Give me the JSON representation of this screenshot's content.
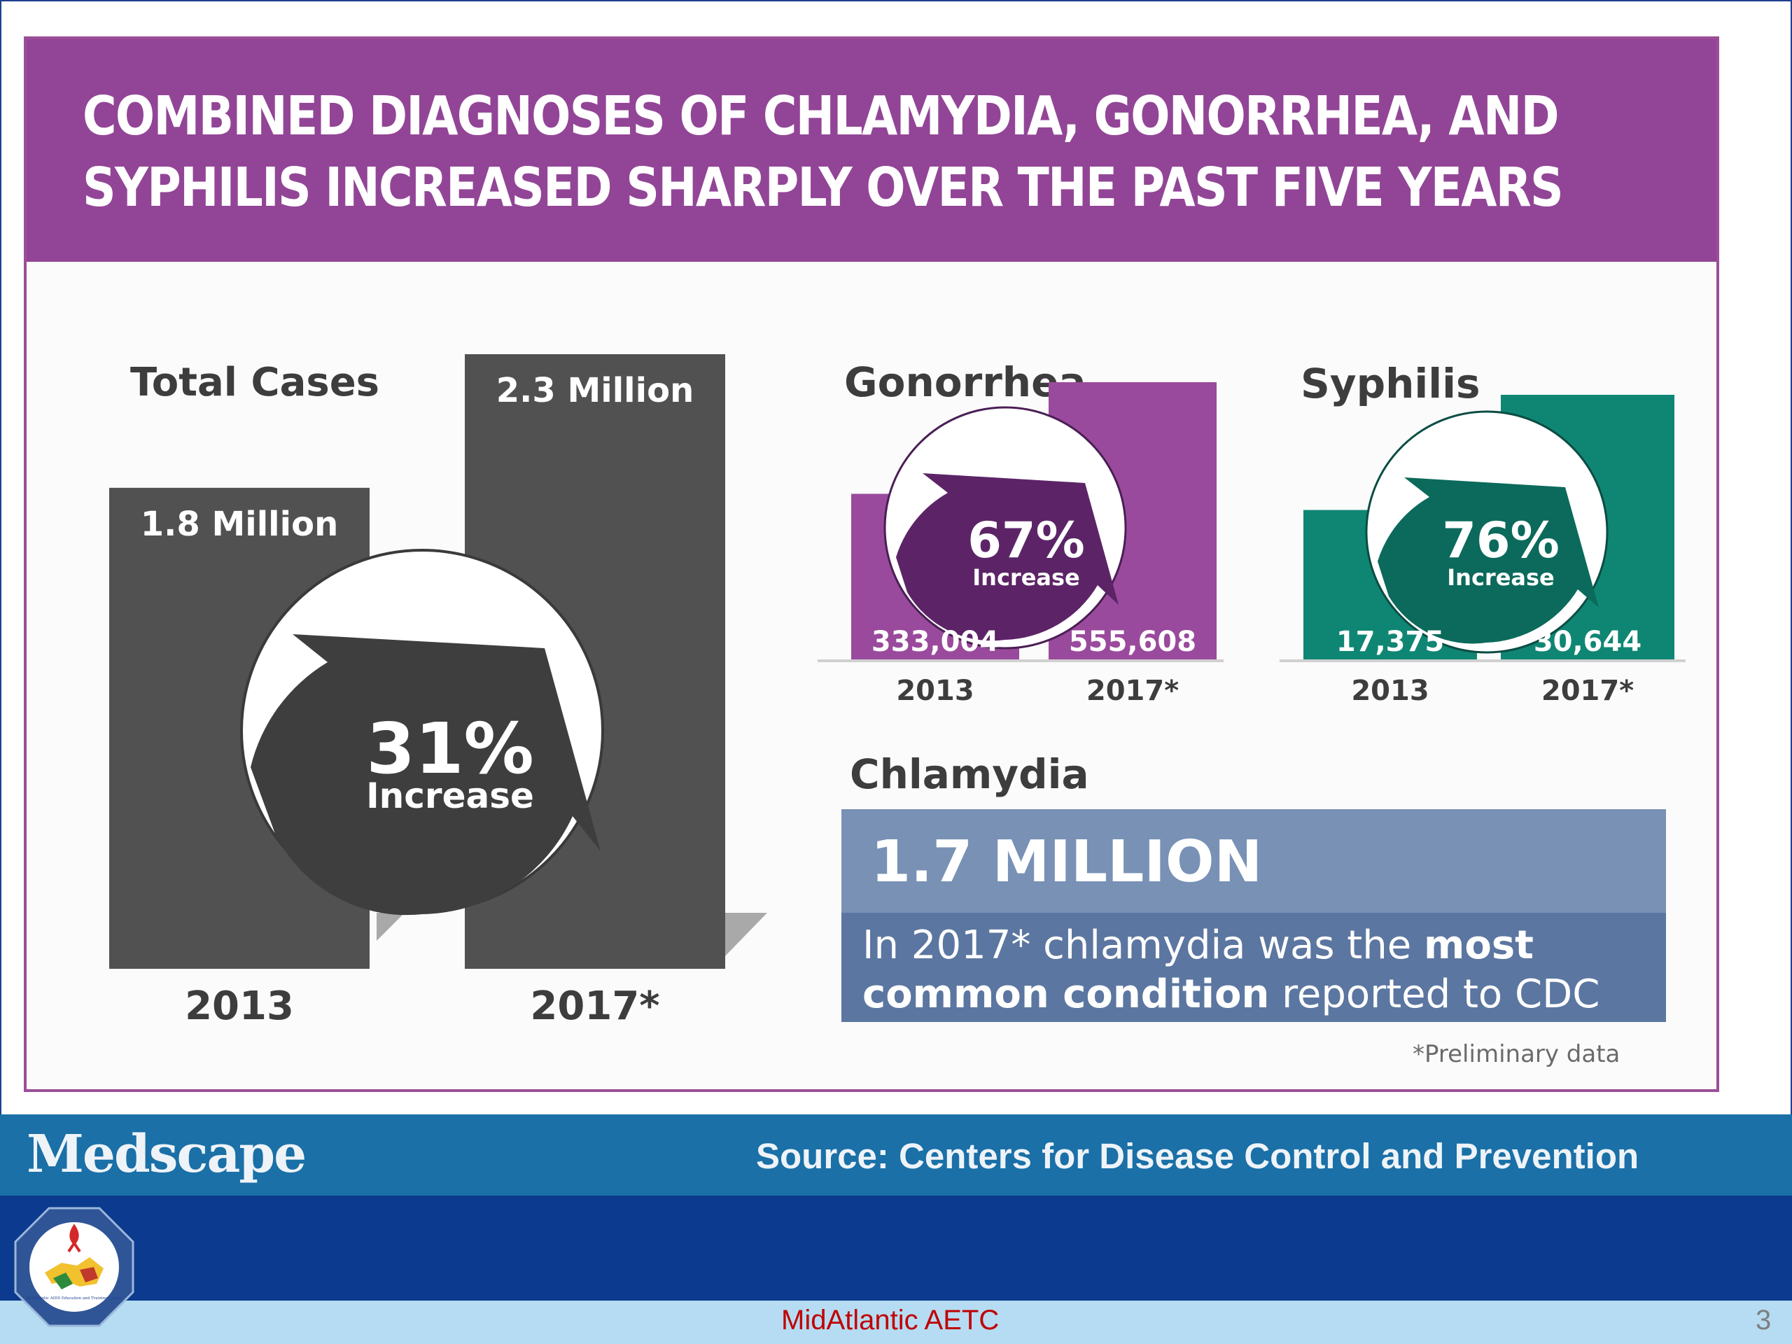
{
  "title": {
    "line1": "COMBINED DIAGNOSES OF CHLAMYDIA, GONORRHEA, AND",
    "line2": "SYPHILIS INCREASED SHARPLY OVER THE PAST FIVE YEARS"
  },
  "colors": {
    "header": "#924596",
    "total_bars": "#515151",
    "gonorrhea": "#9a4a9c",
    "syphilis": "#0f8673",
    "chlamydia_box": "#5b76a0"
  },
  "chart_data": [
    {
      "type": "bar",
      "title": "Total Cases",
      "categories": [
        "2013",
        "2017*"
      ],
      "values": [
        1.8,
        2.3
      ],
      "value_labels": [
        "1.8 Million",
        "2.3 Million"
      ],
      "unit": "Million",
      "annotation": {
        "percent": "31%",
        "label": "Increase"
      }
    },
    {
      "type": "bar",
      "title": "Gonorrhea",
      "categories": [
        "2013",
        "2017*"
      ],
      "values": [
        333004,
        555608
      ],
      "value_labels": [
        "333,004",
        "555,608"
      ],
      "annotation": {
        "percent": "67%",
        "label": "Increase"
      }
    },
    {
      "type": "bar",
      "title": "Syphilis",
      "categories": [
        "2013",
        "2017*"
      ],
      "values": [
        17375,
        30644
      ],
      "value_labels": [
        "17,375",
        "30,644"
      ],
      "annotation": {
        "percent": "76%",
        "label": "Increase"
      }
    }
  ],
  "chlamydia": {
    "title": "Chlamydia",
    "value": "1.7 MILLION",
    "text_part1": "In 2017* chlamydia was the ",
    "text_bold": "most common condition",
    "text_part2": " reported to CDC"
  },
  "footnote": "*Preliminary data",
  "brand": "Medscape",
  "source": "Source: Centers for Disease Control and Prevention",
  "footer": {
    "org": "MidAtlantic AETC",
    "page": "3"
  },
  "logo": {
    "icon": "midatlantic-aetc-seal",
    "text": "MidAtlantic AIDS Education and Training Center"
  }
}
